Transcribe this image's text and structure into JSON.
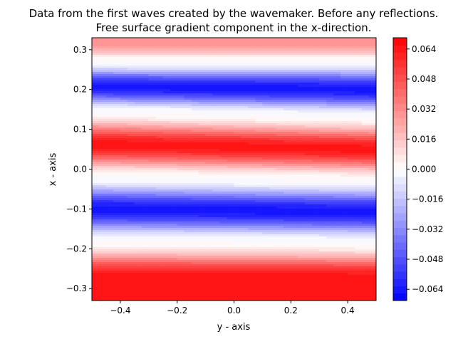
{
  "chart_data": {
    "type": "heatmap",
    "subtype": "filled-contour",
    "title_line1": "Data from the first waves created by the wavemaker. Before any reflections.",
    "title_line2": "Free surface gradient component in the x-direction.",
    "xlabel": "y - axis",
    "ylabel": "x - axis",
    "xlim": [
      -0.5,
      0.5
    ],
    "ylim": [
      -0.33,
      0.33
    ],
    "x_ticks": [
      -0.4,
      -0.2,
      0.0,
      0.2,
      0.4
    ],
    "x_tick_labels": [
      "−0.4",
      "−0.2",
      "0.0",
      "0.2",
      "0.4"
    ],
    "y_ticks": [
      -0.3,
      -0.2,
      -0.1,
      0.0,
      0.1,
      0.2,
      0.3
    ],
    "y_tick_labels": [
      "−0.3",
      "−0.2",
      "−0.1",
      "0.0",
      "0.1",
      "0.2",
      "0.3"
    ],
    "colormap": "bwr",
    "colormap_colors": [
      "#0000ff",
      "#ffffff",
      "#ff0000"
    ],
    "color_range": [
      -0.07,
      0.07
    ],
    "colorbar_ticks": [
      -0.064,
      -0.048,
      -0.032,
      -0.016,
      0.0,
      0.016,
      0.032,
      0.048,
      0.064
    ],
    "colorbar_tick_labels": [
      "−0.064",
      "−0.048",
      "−0.032",
      "−0.016",
      "0.000",
      "0.016",
      "0.032",
      "0.048",
      "0.064"
    ],
    "bands": [
      {
        "x_center": 0.315,
        "value": 0.03
      },
      {
        "x_center": 0.21,
        "value": -0.064
      },
      {
        "x_center": 0.07,
        "value": 0.064
      },
      {
        "x_center": -0.1,
        "value": -0.064
      },
      {
        "x_center": -0.27,
        "value": 0.064
      }
    ],
    "zero_crossings": [
      {
        "y_left": 0.27,
        "y_right": 0.27
      },
      {
        "y_left": 0.145,
        "y_right": 0.13
      },
      {
        "y_left": -0.02,
        "y_right": -0.03
      },
      {
        "y_left": -0.18,
        "y_right": -0.185
      }
    ]
  }
}
